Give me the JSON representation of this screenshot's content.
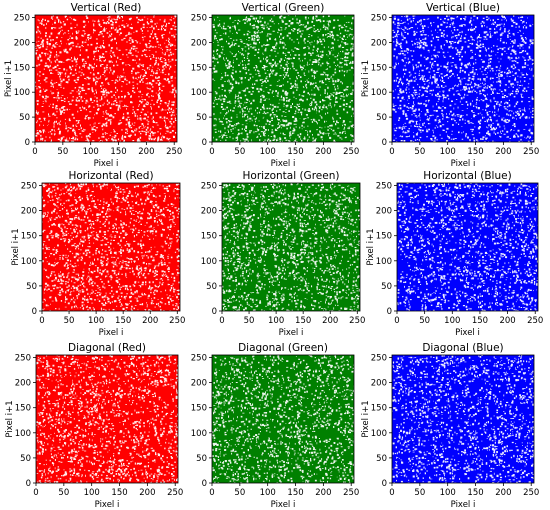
{
  "chart_data": [
    {
      "type": "scatter",
      "title": "Vertical (Red)",
      "xlabel": "Pixel i",
      "ylabel": "Pixel i+1",
      "color": "#ff0000",
      "xlim": [
        0,
        255
      ],
      "ylim": [
        0,
        255
      ],
      "xticks": [
        0,
        50,
        100,
        150,
        200,
        250
      ],
      "yticks": [
        0,
        50,
        100,
        150,
        200,
        250
      ]
    },
    {
      "type": "scatter",
      "title": "Vertical (Green)",
      "xlabel": "Pixel i",
      "ylabel": "",
      "color": "#008000",
      "xlim": [
        0,
        255
      ],
      "ylim": [
        0,
        255
      ],
      "xticks": [
        0,
        50,
        100,
        150,
        200,
        250
      ],
      "yticks": [
        0,
        50,
        100,
        150,
        200,
        250
      ]
    },
    {
      "type": "scatter",
      "title": "Vertical (Blue)",
      "xlabel": "Pixel i",
      "ylabel": "Pixel i+1",
      "color": "#0000ff",
      "xlim": [
        0,
        255
      ],
      "ylim": [
        0,
        255
      ],
      "xticks": [
        0,
        50,
        100,
        150,
        200,
        250
      ],
      "yticks": [
        0,
        50,
        100,
        150,
        200,
        250
      ]
    },
    {
      "type": "scatter",
      "title": "Horizontal (Red)",
      "xlabel": "Pixel i",
      "ylabel": "Pixel i+1",
      "color": "#ff0000",
      "xlim": [
        0,
        255
      ],
      "ylim": [
        0,
        255
      ],
      "xticks": [
        0,
        50,
        100,
        150,
        200,
        250
      ],
      "yticks": [
        0,
        50,
        100,
        150,
        200,
        250
      ]
    },
    {
      "type": "scatter",
      "title": "Horizontal (Green)",
      "xlabel": "Pixel i",
      "ylabel": "",
      "color": "#008000",
      "xlim": [
        0,
        255
      ],
      "ylim": [
        0,
        255
      ],
      "xticks": [
        0,
        50,
        100,
        150,
        200,
        250
      ],
      "yticks": [
        0,
        50,
        100,
        150,
        200,
        250
      ]
    },
    {
      "type": "scatter",
      "title": "Horizontal (Blue)",
      "xlabel": "Pixel i",
      "ylabel": "Pixel i+1",
      "color": "#0000ff",
      "xlim": [
        0,
        255
      ],
      "ylim": [
        0,
        255
      ],
      "xticks": [
        0,
        50,
        100,
        150,
        200,
        250
      ],
      "yticks": [
        0,
        50,
        100,
        150,
        200,
        250
      ]
    },
    {
      "type": "scatter",
      "title": "Diagonal (Red)",
      "xlabel": "Pixel i",
      "ylabel": "Pixel i+1",
      "color": "#ff0000",
      "xlim": [
        0,
        255
      ],
      "ylim": [
        0,
        255
      ],
      "xticks": [
        0,
        50,
        100,
        150,
        200,
        250
      ],
      "yticks": [
        0,
        50,
        100,
        150,
        200,
        250
      ]
    },
    {
      "type": "scatter",
      "title": "Diagonal (Green)",
      "xlabel": "Pixel i",
      "ylabel": "",
      "color": "#008000",
      "xlim": [
        0,
        255
      ],
      "ylim": [
        0,
        255
      ],
      "xticks": [
        0,
        50,
        100,
        150,
        200,
        250
      ],
      "yticks": [
        0,
        50,
        100,
        150,
        200,
        250
      ]
    },
    {
      "type": "scatter",
      "title": "Diagonal (Blue)",
      "xlabel": "Pixel i",
      "ylabel": "Pixel i+1",
      "color": "#0000ff",
      "xlim": [
        0,
        255
      ],
      "ylim": [
        0,
        255
      ],
      "xticks": [
        0,
        50,
        100,
        150,
        200,
        250
      ],
      "yticks": [
        0,
        50,
        100,
        150,
        200,
        250
      ]
    }
  ]
}
